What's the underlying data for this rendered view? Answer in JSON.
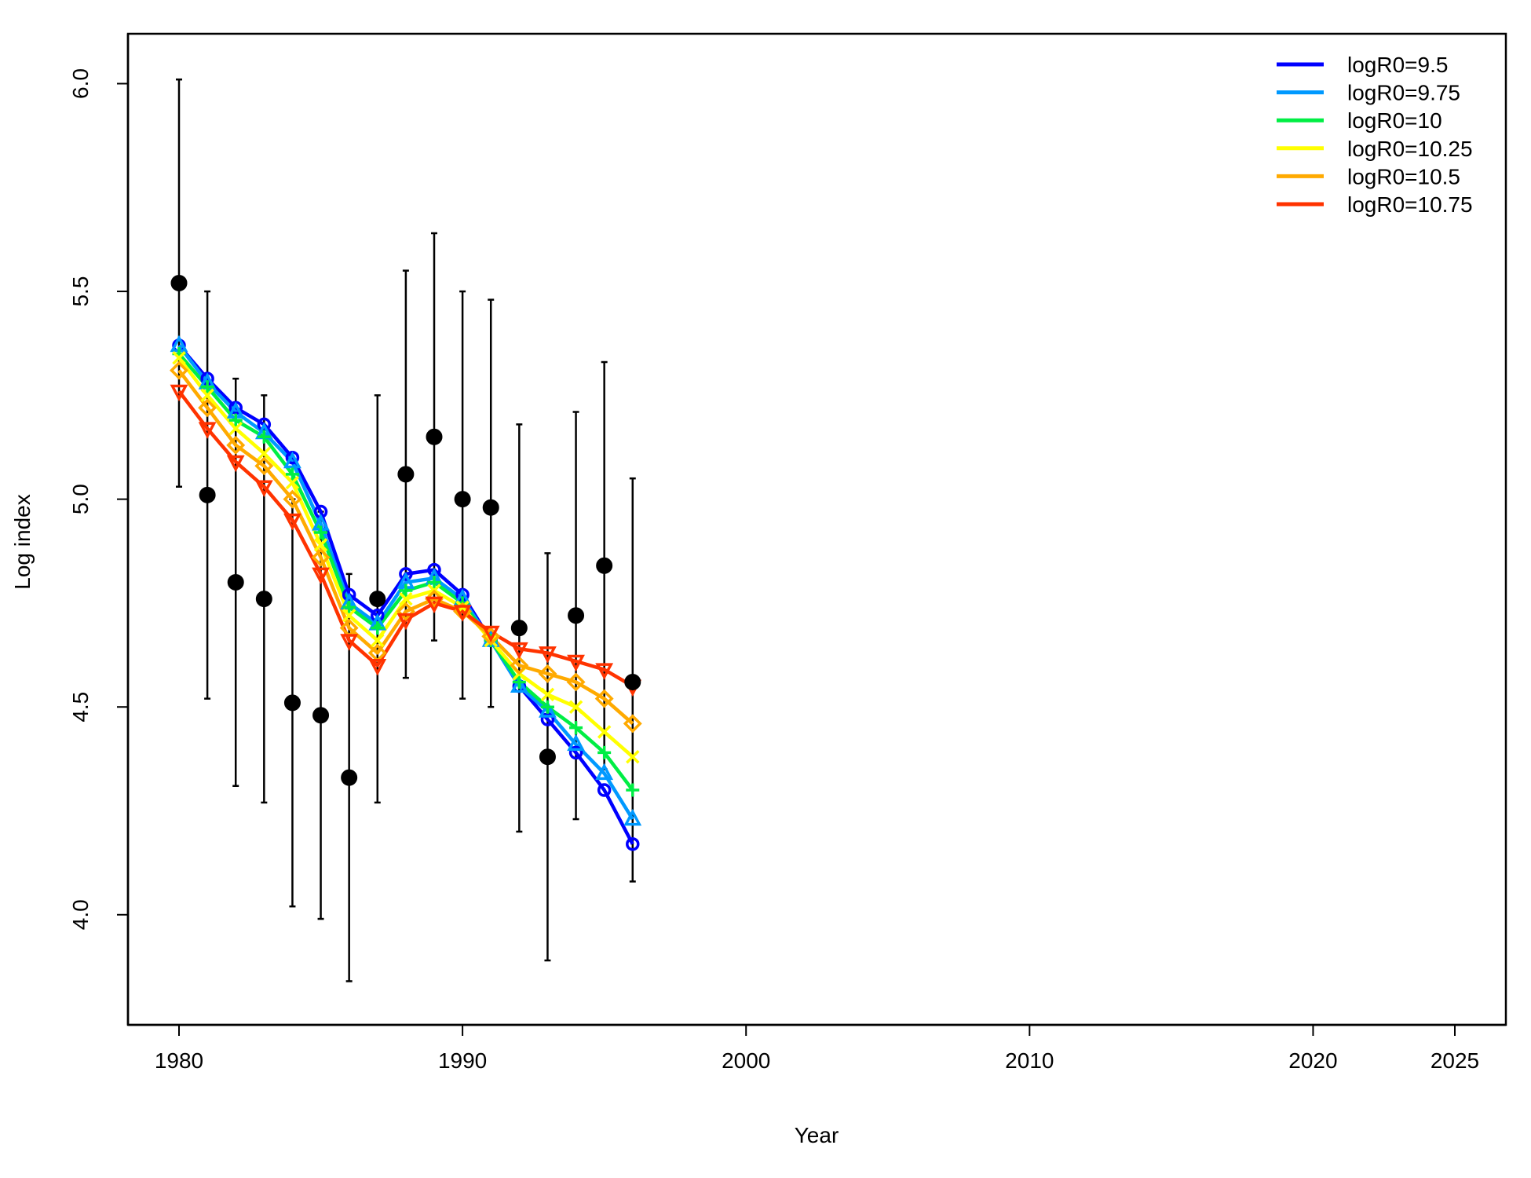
{
  "chart_data": {
    "type": "line",
    "title": "",
    "xlabel": "Year",
    "ylabel": "Log index",
    "xlim": [
      1978.2,
      2026.8
    ],
    "ylim": [
      3.735,
      6.12
    ],
    "x_ticks": [
      1980,
      1990,
      2000,
      2010,
      2020,
      2025
    ],
    "y_ticks": [
      4.0,
      4.5,
      5.0,
      5.5,
      6.0
    ],
    "y_tick_labels": [
      "4.0",
      "4.5",
      "5.0",
      "5.5",
      "6.0"
    ],
    "legend_position": "top-right",
    "observed": {
      "x": [
        1980,
        1981,
        1982,
        1983,
        1984,
        1985,
        1986,
        1987,
        1988,
        1989,
        1990,
        1991,
        1992,
        1993,
        1994,
        1995,
        1996
      ],
      "y": [
        5.52,
        5.01,
        4.8,
        4.76,
        4.51,
        4.48,
        4.33,
        4.76,
        5.06,
        5.15,
        5.0,
        4.98,
        4.69,
        4.38,
        4.72,
        4.84,
        4.56
      ],
      "lower": [
        5.03,
        4.52,
        4.31,
        4.27,
        4.02,
        3.99,
        3.84,
        4.27,
        4.57,
        4.66,
        4.52,
        4.5,
        4.2,
        3.89,
        4.23,
        4.35,
        4.08
      ],
      "upper": [
        6.01,
        5.5,
        5.29,
        5.25,
        5.0,
        4.97,
        4.82,
        5.25,
        5.55,
        5.64,
        5.5,
        5.48,
        5.18,
        4.87,
        5.21,
        5.33,
        5.05
      ]
    },
    "x": [
      1980,
      1981,
      1982,
      1983,
      1984,
      1985,
      1986,
      1987,
      1988,
      1989,
      1990,
      1991,
      1992,
      1993,
      1994,
      1995,
      1996
    ],
    "series": [
      {
        "name": "logR0=9.5",
        "color": "#0000FF",
        "marker": "circle",
        "values": [
          5.37,
          5.29,
          5.22,
          5.18,
          5.1,
          4.97,
          4.77,
          4.72,
          4.82,
          4.83,
          4.77,
          4.66,
          4.55,
          4.47,
          4.39,
          4.3,
          4.17
        ]
      },
      {
        "name": "logR0=9.75",
        "color": "#0099FF",
        "marker": "triangle-up",
        "values": [
          5.37,
          5.28,
          5.21,
          5.16,
          5.09,
          4.94,
          4.75,
          4.7,
          4.8,
          4.81,
          4.76,
          4.66,
          4.55,
          4.49,
          4.41,
          4.34,
          4.23
        ]
      },
      {
        "name": "logR0=10",
        "color": "#00EE44",
        "marker": "plus",
        "values": [
          5.35,
          5.27,
          5.19,
          5.15,
          5.06,
          4.92,
          4.74,
          4.69,
          4.78,
          4.8,
          4.75,
          4.66,
          4.56,
          4.5,
          4.45,
          4.39,
          4.3
        ]
      },
      {
        "name": "logR0=10.25",
        "color": "#FFFF00",
        "marker": "x",
        "values": [
          5.34,
          5.25,
          5.17,
          5.11,
          5.04,
          4.89,
          4.72,
          4.66,
          4.76,
          4.78,
          4.74,
          4.66,
          4.58,
          4.53,
          4.5,
          4.44,
          4.38
        ]
      },
      {
        "name": "logR0=10.5",
        "color": "#FFAA00",
        "marker": "diamond",
        "values": [
          5.31,
          5.22,
          5.13,
          5.08,
          5.0,
          4.86,
          4.69,
          4.63,
          4.73,
          4.76,
          4.73,
          4.67,
          4.6,
          4.58,
          4.56,
          4.52,
          4.46
        ]
      },
      {
        "name": "logR0=10.75",
        "color": "#FF3300",
        "marker": "triangle-down",
        "values": [
          5.26,
          5.17,
          5.09,
          5.03,
          4.95,
          4.82,
          4.66,
          4.6,
          4.71,
          4.75,
          4.73,
          4.68,
          4.64,
          4.63,
          4.61,
          4.59,
          4.55
        ]
      }
    ]
  }
}
